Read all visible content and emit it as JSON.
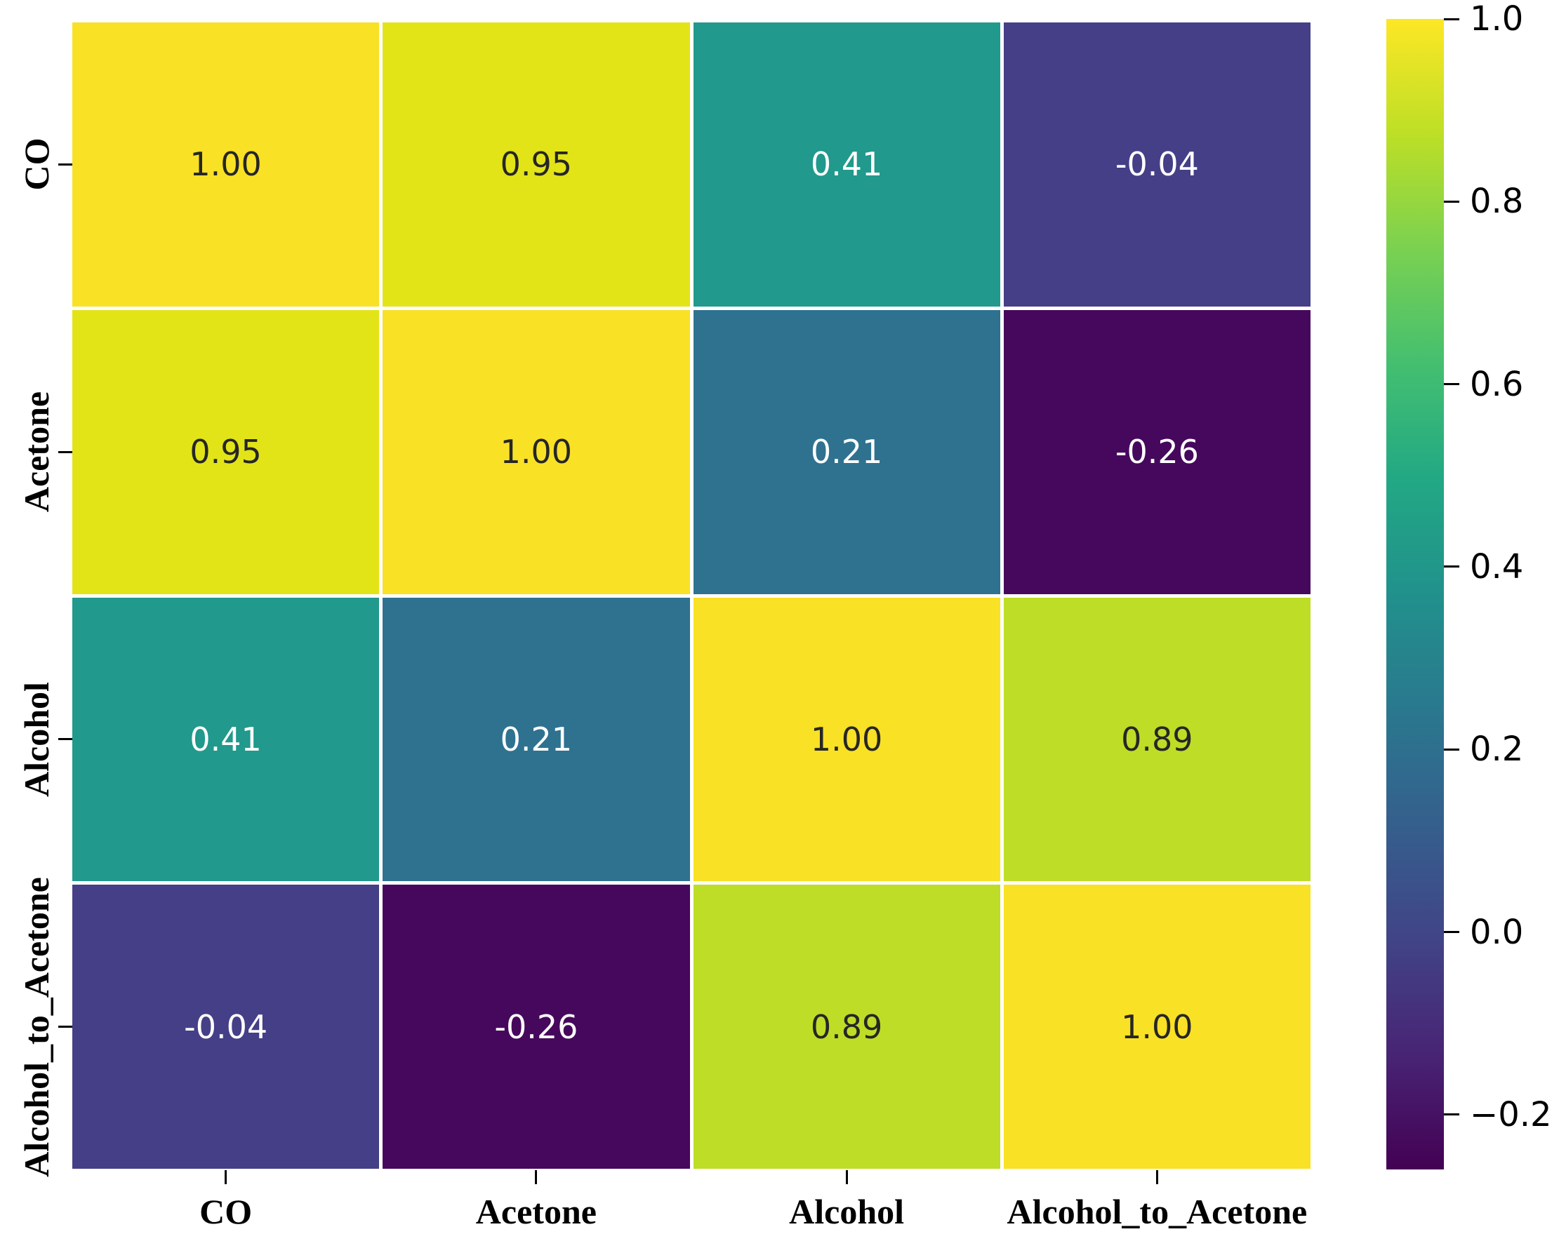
{
  "figure": {
    "background_color": "#ffffff",
    "kind": "seaborn-style correlation heatmap with viridis colorbar"
  },
  "chart_data": {
    "type": "heatmap",
    "title": "",
    "xlabel": "",
    "ylabel": "",
    "categories": [
      "CO",
      "Acetone",
      "Alcohol",
      "Alcohol_to_Acetone"
    ],
    "matrix": [
      [
        1.0,
        0.95,
        0.41,
        -0.04
      ],
      [
        0.95,
        1.0,
        0.21,
        -0.26
      ],
      [
        0.41,
        0.21,
        1.0,
        0.89
      ],
      [
        -0.04,
        -0.26,
        0.89,
        1.0
      ]
    ],
    "cell_labels": [
      [
        "1.00",
        "0.95",
        "0.41",
        "-0.04"
      ],
      [
        "0.95",
        "1.00",
        "0.21",
        "-0.26"
      ],
      [
        "0.41",
        "0.21",
        "1.00",
        "0.89"
      ],
      [
        "-0.04",
        "-0.26",
        "0.89",
        "1.00"
      ]
    ],
    "cell_colors": [
      [
        "#f9e125",
        "#e2e418",
        "#21998c",
        "#453f87"
      ],
      [
        "#e2e418",
        "#f9e125",
        "#2e7290",
        "#46085c"
      ],
      [
        "#21998c",
        "#2e7290",
        "#f9e125",
        "#bedd26"
      ],
      [
        "#453f87",
        "#46085c",
        "#bedd26",
        "#f9e125"
      ]
    ],
    "annotation_dark_text_color": "#262626",
    "annotation_light_text_color": "#ffffff",
    "colormap": "viridis",
    "vmin": -0.26,
    "vmax": 1.0,
    "grid_gap_color": "#ffffff",
    "legend_position": "right",
    "colorbar": {
      "tick_labels": [
        "1.0",
        "0.8",
        "0.6",
        "0.4",
        "0.2",
        "0.0",
        "−0.2"
      ],
      "tick_values": [
        1.0,
        0.8,
        0.6,
        0.4,
        0.2,
        0.0,
        -0.2
      ],
      "gradient_stops": [
        {
          "pos": 0.0,
          "color": "#440154"
        },
        {
          "pos": 0.1,
          "color": "#482475"
        },
        {
          "pos": 0.2,
          "color": "#414487"
        },
        {
          "pos": 0.3,
          "color": "#355f8d"
        },
        {
          "pos": 0.4,
          "color": "#2a788e"
        },
        {
          "pos": 0.5,
          "color": "#21918c"
        },
        {
          "pos": 0.6,
          "color": "#22a884"
        },
        {
          "pos": 0.7,
          "color": "#44bf70"
        },
        {
          "pos": 0.8,
          "color": "#7ad151"
        },
        {
          "pos": 0.9,
          "color": "#bddf26"
        },
        {
          "pos": 1.0,
          "color": "#fde725"
        }
      ]
    }
  }
}
